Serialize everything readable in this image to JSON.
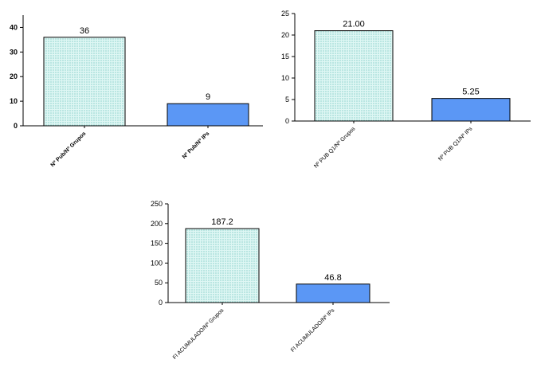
{
  "colors": {
    "bar_dotted_fill": "#dff7f4",
    "bar_dotted_dots": "#5dbfb8",
    "bar_blue_fill": "#5b97f5",
    "bar_outline": "#000000"
  },
  "chart_data": [
    {
      "type": "bar",
      "categories": [
        "Nº Pub/Nº Grupos",
        "Nº Pub/Nº IPs"
      ],
      "values": [
        36,
        9
      ],
      "value_labels": [
        "36",
        "9"
      ],
      "ylim": [
        0,
        45
      ],
      "yticks": [
        0,
        10,
        20,
        30,
        40
      ],
      "ytick_labels": [
        "0",
        "10",
        "20",
        "30",
        "40"
      ],
      "bold_labels": true,
      "fills": [
        "dotted",
        "blue"
      ]
    },
    {
      "type": "bar",
      "categories": [
        "Nº PUB Q1/Nº Grupos",
        "Nº PUB Q1/Nº IPs"
      ],
      "values": [
        21.0,
        5.25
      ],
      "value_labels": [
        "21.00",
        "5.25"
      ],
      "ylim": [
        0,
        25
      ],
      "yticks": [
        0,
        5,
        10,
        15,
        20,
        25
      ],
      "ytick_labels": [
        "0",
        "5",
        "10",
        "15",
        "20",
        "25"
      ],
      "bold_labels": false,
      "fills": [
        "dotted",
        "blue"
      ]
    },
    {
      "type": "bar",
      "categories": [
        "FI ACUMULADO/Nº Grupos",
        "FI ACUMULADO/Nº IPs"
      ],
      "values": [
        187.2,
        46.8
      ],
      "value_labels": [
        "187.2",
        "46.8"
      ],
      "ylim": [
        0,
        250
      ],
      "yticks": [
        0,
        50,
        100,
        150,
        200,
        250
      ],
      "ytick_labels": [
        "0",
        "50",
        "100",
        "150",
        "200",
        "250"
      ],
      "bold_labels": false,
      "fills": [
        "dotted",
        "blue"
      ]
    }
  ]
}
